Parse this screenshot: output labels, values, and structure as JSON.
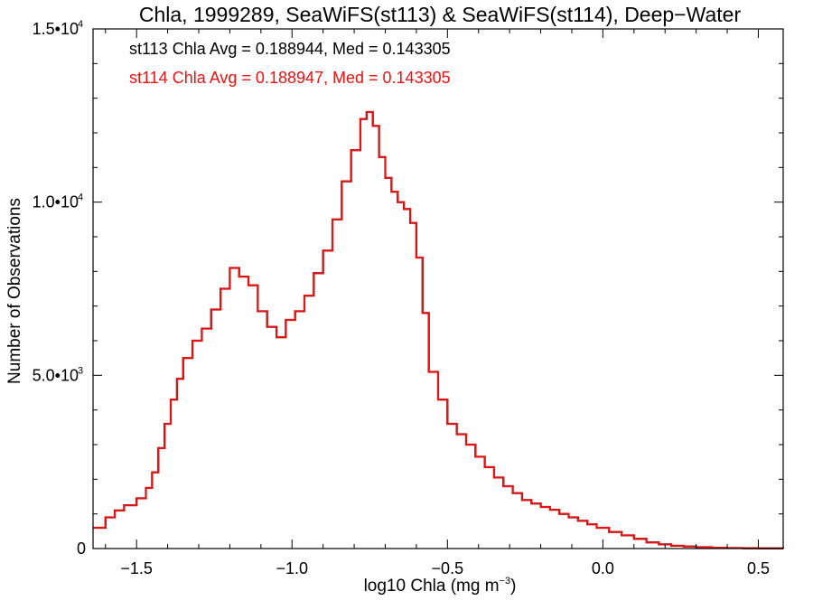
{
  "chart_data": {
    "type": "histogram-step",
    "title": "Chla, 1999289, SeaWiFS(st113) & SeaWiFS(st114), Deep−Water",
    "xlabel": {
      "base": "log10 Chla (mg m",
      "exp": "−3",
      "close": ")"
    },
    "ylabel": "Number of Observations",
    "xlim": [
      -1.64,
      0.58
    ],
    "ylim": [
      0,
      15000
    ],
    "x_ticks": [
      {
        "v": -1.5,
        "label": "−1.5"
      },
      {
        "v": -1.0,
        "label": "−1.0"
      },
      {
        "v": -0.5,
        "label": "−0.5"
      },
      {
        "v": 0.0,
        "label": "0.0"
      },
      {
        "v": 0.5,
        "label": "0.5"
      }
    ],
    "y_ticks": [
      {
        "v": 0,
        "mant": "0",
        "exp": ""
      },
      {
        "v": 5000,
        "mant": "5.0•10",
        "exp": "3"
      },
      {
        "v": 10000,
        "mant": "1.0•10",
        "exp": "4"
      },
      {
        "v": 15000,
        "mant": "1.5•10",
        "exp": "4"
      }
    ],
    "annotations": [
      {
        "text": "st113 Chla Avg = 0.188944, Med = 0.143305",
        "color": "#000000"
      },
      {
        "text": "st114 Chla Avg = 0.188947, Med = 0.143305",
        "color": "#ee1111"
      }
    ],
    "series": [
      {
        "name": "st113",
        "color": "#000000",
        "points": [
          [
            -1.64,
            600
          ],
          [
            -1.6,
            900
          ],
          [
            -1.57,
            1100
          ],
          [
            -1.54,
            1250
          ],
          [
            -1.5,
            1450
          ],
          [
            -1.47,
            1750
          ],
          [
            -1.45,
            2200
          ],
          [
            -1.43,
            2900
          ],
          [
            -1.41,
            3600
          ],
          [
            -1.39,
            4300
          ],
          [
            -1.37,
            4900
          ],
          [
            -1.35,
            5500
          ],
          [
            -1.32,
            6000
          ],
          [
            -1.29,
            6350
          ],
          [
            -1.26,
            6900
          ],
          [
            -1.23,
            7500
          ],
          [
            -1.2,
            8100
          ],
          [
            -1.17,
            7850
          ],
          [
            -1.14,
            7600
          ],
          [
            -1.11,
            6850
          ],
          [
            -1.08,
            6400
          ],
          [
            -1.05,
            6100
          ],
          [
            -1.02,
            6600
          ],
          [
            -0.99,
            6850
          ],
          [
            -0.96,
            7300
          ],
          [
            -0.93,
            7950
          ],
          [
            -0.9,
            8600
          ],
          [
            -0.87,
            9500
          ],
          [
            -0.84,
            10600
          ],
          [
            -0.81,
            11500
          ],
          [
            -0.78,
            12400
          ],
          [
            -0.76,
            12600
          ],
          [
            -0.74,
            12200
          ],
          [
            -0.72,
            11300
          ],
          [
            -0.7,
            10700
          ],
          [
            -0.68,
            10300
          ],
          [
            -0.66,
            10000
          ],
          [
            -0.64,
            9800
          ],
          [
            -0.62,
            9400
          ],
          [
            -0.6,
            8400
          ],
          [
            -0.58,
            6800
          ],
          [
            -0.56,
            5100
          ],
          [
            -0.53,
            4300
          ],
          [
            -0.5,
            3600
          ],
          [
            -0.47,
            3300
          ],
          [
            -0.44,
            3000
          ],
          [
            -0.41,
            2650
          ],
          [
            -0.38,
            2350
          ],
          [
            -0.35,
            2050
          ],
          [
            -0.32,
            1800
          ],
          [
            -0.29,
            1600
          ],
          [
            -0.26,
            1400
          ],
          [
            -0.23,
            1300
          ],
          [
            -0.2,
            1200
          ],
          [
            -0.17,
            1120
          ],
          [
            -0.14,
            1000
          ],
          [
            -0.11,
            900
          ],
          [
            -0.08,
            800
          ],
          [
            -0.05,
            700
          ],
          [
            -0.02,
            600
          ],
          [
            0.02,
            480
          ],
          [
            0.06,
            380
          ],
          [
            0.1,
            280
          ],
          [
            0.14,
            180
          ],
          [
            0.18,
            120
          ],
          [
            0.22,
            80
          ],
          [
            0.26,
            60
          ],
          [
            0.3,
            40
          ],
          [
            0.35,
            25
          ],
          [
            0.4,
            15
          ],
          [
            0.45,
            10
          ],
          [
            0.5,
            5
          ],
          [
            0.58,
            3
          ]
        ]
      },
      {
        "name": "st114",
        "color": "#ee1111",
        "points": [
          [
            -1.64,
            600
          ],
          [
            -1.6,
            900
          ],
          [
            -1.57,
            1100
          ],
          [
            -1.54,
            1250
          ],
          [
            -1.5,
            1450
          ],
          [
            -1.47,
            1750
          ],
          [
            -1.45,
            2200
          ],
          [
            -1.43,
            2900
          ],
          [
            -1.41,
            3600
          ],
          [
            -1.39,
            4300
          ],
          [
            -1.37,
            4900
          ],
          [
            -1.35,
            5500
          ],
          [
            -1.32,
            6000
          ],
          [
            -1.29,
            6350
          ],
          [
            -1.26,
            6900
          ],
          [
            -1.23,
            7500
          ],
          [
            -1.2,
            8100
          ],
          [
            -1.17,
            7850
          ],
          [
            -1.14,
            7600
          ],
          [
            -1.11,
            6850
          ],
          [
            -1.08,
            6400
          ],
          [
            -1.05,
            6100
          ],
          [
            -1.02,
            6600
          ],
          [
            -0.99,
            6850
          ],
          [
            -0.96,
            7300
          ],
          [
            -0.93,
            7950
          ],
          [
            -0.9,
            8600
          ],
          [
            -0.87,
            9500
          ],
          [
            -0.84,
            10600
          ],
          [
            -0.81,
            11500
          ],
          [
            -0.78,
            12400
          ],
          [
            -0.76,
            12600
          ],
          [
            -0.74,
            12200
          ],
          [
            -0.72,
            11300
          ],
          [
            -0.7,
            10700
          ],
          [
            -0.68,
            10300
          ],
          [
            -0.66,
            10000
          ],
          [
            -0.64,
            9800
          ],
          [
            -0.62,
            9400
          ],
          [
            -0.6,
            8400
          ],
          [
            -0.58,
            6800
          ],
          [
            -0.56,
            5100
          ],
          [
            -0.53,
            4300
          ],
          [
            -0.5,
            3600
          ],
          [
            -0.47,
            3300
          ],
          [
            -0.44,
            3000
          ],
          [
            -0.41,
            2650
          ],
          [
            -0.38,
            2350
          ],
          [
            -0.35,
            2050
          ],
          [
            -0.32,
            1800
          ],
          [
            -0.29,
            1600
          ],
          [
            -0.26,
            1400
          ],
          [
            -0.23,
            1300
          ],
          [
            -0.2,
            1200
          ],
          [
            -0.17,
            1120
          ],
          [
            -0.14,
            1000
          ],
          [
            -0.11,
            900
          ],
          [
            -0.08,
            800
          ],
          [
            -0.05,
            700
          ],
          [
            -0.02,
            600
          ],
          [
            0.02,
            480
          ],
          [
            0.06,
            380
          ],
          [
            0.1,
            280
          ],
          [
            0.14,
            180
          ],
          [
            0.18,
            120
          ],
          [
            0.22,
            80
          ],
          [
            0.26,
            60
          ],
          [
            0.3,
            40
          ],
          [
            0.35,
            25
          ],
          [
            0.4,
            15
          ],
          [
            0.45,
            10
          ],
          [
            0.5,
            5
          ],
          [
            0.58,
            3
          ]
        ]
      }
    ]
  }
}
